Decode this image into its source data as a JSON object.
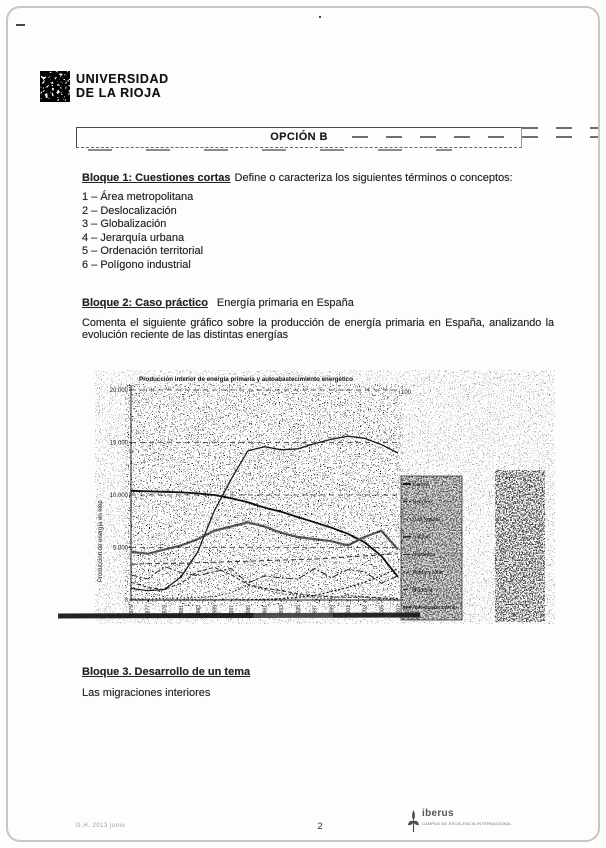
{
  "university": {
    "name_line1": "UNIVERSIDAD",
    "name_line2": "DE LA RIOJA"
  },
  "header": {
    "option_label": "OPCIÓN B"
  },
  "bloque1": {
    "title": "Bloque 1: Cuestiones cortas",
    "intro": "Define o caracteriza  los siguientes términos o conceptos:",
    "items": [
      "1 – Área metropolitana",
      "2 – Deslocalización",
      "3 – Globalización",
      "4 – Jerarquía urbana",
      "5 – Ordenación territorial",
      "6 – Polígono industrial"
    ]
  },
  "bloque2": {
    "title": "Bloque 2: Caso práctico",
    "subtitle": "Energía primaria en España",
    "paragraph": "Comenta el siguiente gráfico sobre la producción de energía primaria en España, analizando la evolución reciente de las distintas energías"
  },
  "bloque3": {
    "title": "Bloque 3. Desarrollo de un tema",
    "subtitle": "Las migraciones interiores"
  },
  "footer": {
    "ref": "G.H. 2013 junio",
    "page_number": "2",
    "brand": "iberus",
    "brand_tagline": "CAMPUS DE EXCELENCIA INTERNACIONAL"
  },
  "chart_data": {
    "type": "line",
    "title": "Producción interior de energía primaria y autoabastecimiento energético",
    "ylabel": "Producción de energía en ktep",
    "right_axis_top_label": "100",
    "xlim": [
      1975,
      2007
    ],
    "ylim": [
      0,
      20000
    ],
    "grid": "dashed-horizontal",
    "legend_position": "right",
    "yticks": [
      {
        "value": 0,
        "label": "0"
      },
      {
        "value": 5000,
        "label": "5.000"
      },
      {
        "value": 10000,
        "label": "10.000"
      },
      {
        "value": 15000,
        "label": "15.000"
      },
      {
        "value": 20000,
        "label": "20.000"
      }
    ],
    "x": [
      1975,
      1977,
      1979,
      1981,
      1983,
      1985,
      1987,
      1989,
      1991,
      1993,
      1995,
      1997,
      1999,
      2001,
      2003,
      2005,
      2007
    ],
    "series": [
      {
        "name": "Carbón",
        "axis": "left",
        "color": "#111111",
        "width": 1.8,
        "dash": "",
        "values": [
          10400,
          10350,
          10300,
          10250,
          10150,
          10000,
          9700,
          9300,
          8800,
          8400,
          7900,
          7400,
          6900,
          6300,
          5500,
          4200,
          2200
        ]
      },
      {
        "name": "Petróleo",
        "axis": "left",
        "color": "#2a2a2a",
        "width": 1,
        "dash": "4 2",
        "values": [
          1700,
          1200,
          1000,
          1600,
          2700,
          3100,
          2400,
          1500,
          1100,
          900,
          600,
          400,
          300,
          250,
          300,
          200,
          150
        ]
      },
      {
        "name": "Gas Natural",
        "axis": "left",
        "color": "#333333",
        "width": 1,
        "dash": "1.5 2",
        "values": [
          100,
          100,
          150,
          200,
          250,
          350,
          700,
          1400,
          1000,
          600,
          450,
          200,
          150,
          500,
          250,
          150,
          50
        ]
      },
      {
        "name": "Nuclear",
        "axis": "left",
        "color": "#1f1f1f",
        "width": 1.3,
        "dash": "",
        "values": [
          1100,
          900,
          1000,
          2200,
          4600,
          8500,
          11500,
          14200,
          14600,
          14300,
          14400,
          14900,
          15300,
          15600,
          15400,
          14800,
          14000
        ]
      },
      {
        "name": "Hidráulica",
        "axis": "left",
        "color": "#2d2d2d",
        "width": 1,
        "dash": "7 2 2 2",
        "values": [
          2400,
          2000,
          3200,
          2600,
          2300,
          2700,
          3000,
          1600,
          2300,
          2100,
          2000,
          3000,
          2100,
          2900,
          2700,
          1600,
          2300
        ]
      },
      {
        "name": "Eólica y solar",
        "axis": "left",
        "color": "#181818",
        "width": 1.2,
        "dash": "2 2",
        "values": [
          0,
          0,
          0,
          0,
          0,
          10,
          20,
          30,
          60,
          120,
          250,
          450,
          800,
          1200,
          1700,
          2300,
          3000
        ]
      },
      {
        "name": "Biomasa",
        "axis": "left",
        "color": "#3a3a3a",
        "width": 1,
        "dash": "5 3",
        "values": [
          3400,
          3450,
          3500,
          3500,
          3550,
          3600,
          3650,
          3700,
          3750,
          3800,
          3850,
          3900,
          4000,
          4100,
          4200,
          4300,
          4400
        ]
      },
      {
        "name": "Autoabastecimiento",
        "axis": "right",
        "color": "#5a5a5a",
        "width": 2.2,
        "dash": "",
        "values": [
          23,
          22,
          24,
          26,
          29,
          33,
          35,
          37,
          35,
          32,
          30,
          29,
          28,
          26,
          30,
          33,
          24
        ]
      }
    ]
  }
}
